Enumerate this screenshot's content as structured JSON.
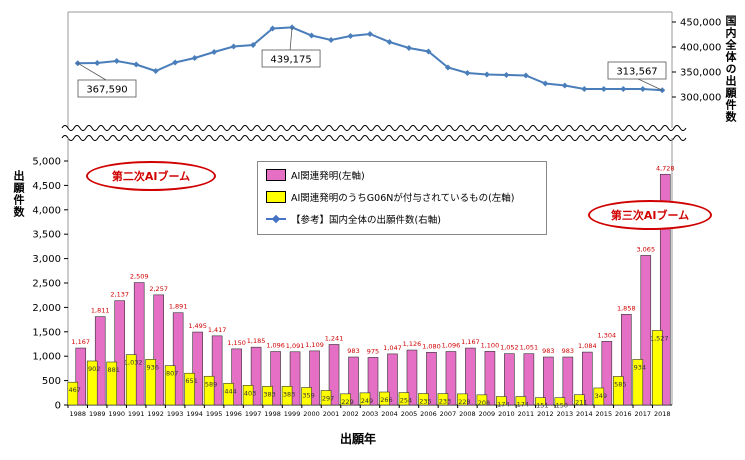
{
  "colors": {
    "pink_bar": "#e46fc4",
    "yellow_bar": "#ffff00",
    "line": "#4a7ebb",
    "label_red": "#d00000",
    "oval": "#d00000"
  },
  "axes": {
    "left_title": "出願件数",
    "right_title": "国内全体の出願件数",
    "x_title": "出願年"
  },
  "annotations": {
    "boom2": "第二次AIブーム",
    "boom3": "第三次AIブーム"
  },
  "legend": {
    "ai": "AI関連発明(左軸)",
    "g06n": "AI関連発明のうちG06Nが付与されているもの(左軸)",
    "total": "【参考】国内全体の出願件数(右軸)"
  },
  "chart_data": {
    "type": "bar",
    "categories": [
      "1988",
      "1989",
      "1990",
      "1991",
      "1992",
      "1993",
      "1994",
      "1995",
      "1996",
      "1997",
      "1998",
      "1999",
      "2000",
      "2001",
      "2002",
      "2003",
      "2004",
      "2005",
      "2006",
      "2007",
      "2008",
      "2009",
      "2010",
      "2011",
      "2012",
      "2013",
      "2014",
      "2015",
      "2016",
      "2017",
      "2018"
    ],
    "series": [
      {
        "name": "AI関連発明(左軸)",
        "axis": "left",
        "values": [
          1167,
          1811,
          2137,
          2509,
          2257,
          1891,
          1495,
          1417,
          1150,
          1185,
          1096,
          1091,
          1109,
          1241,
          983,
          975,
          1047,
          1126,
          1080,
          1096,
          1167,
          1100,
          1052,
          1051,
          983,
          983,
          1084,
          1304,
          1858,
          3065,
          4728
        ]
      },
      {
        "name": "AI関連発明のうちG06Nが付与されているもの(左軸)",
        "axis": "left",
        "values": [
          467,
          902,
          881,
          1032,
          936,
          807,
          651,
          589,
          444,
          403,
          383,
          383,
          359,
          297,
          229,
          249,
          266,
          254,
          235,
          233,
          228,
          208,
          174,
          174,
          151,
          150,
          211,
          349,
          585,
          934,
          1527
        ]
      },
      {
        "name": "【参考】国内全体の出願件数(右軸)",
        "axis": "right",
        "type": "line",
        "values": [
          367590,
          368000,
          372000,
          365000,
          352000,
          369000,
          378000,
          390000,
          401000,
          404000,
          437000,
          439175,
          423000,
          414000,
          422000,
          426000,
          410000,
          398000,
          391000,
          359000,
          348000,
          345000,
          344000,
          343000,
          327000,
          323000,
          316000,
          316000,
          316000,
          316000,
          313567
        ]
      }
    ],
    "left_axis": {
      "ylim": [
        0,
        5000
      ],
      "ticks": [
        "0",
        "500",
        "1,000",
        "1,500",
        "2,000",
        "2,500",
        "3,000",
        "3,500",
        "4,000",
        "4,500",
        "5,000"
      ]
    },
    "right_axis": {
      "ylim": [
        270000,
        470000
      ],
      "ticks": [
        "300,000",
        "350,000",
        "400,000",
        "450,000"
      ]
    },
    "callouts": [
      {
        "index": 0,
        "text": "367,590"
      },
      {
        "index": 11,
        "text": "439,175"
      },
      {
        "index": 30,
        "text": "313,567"
      }
    ]
  }
}
